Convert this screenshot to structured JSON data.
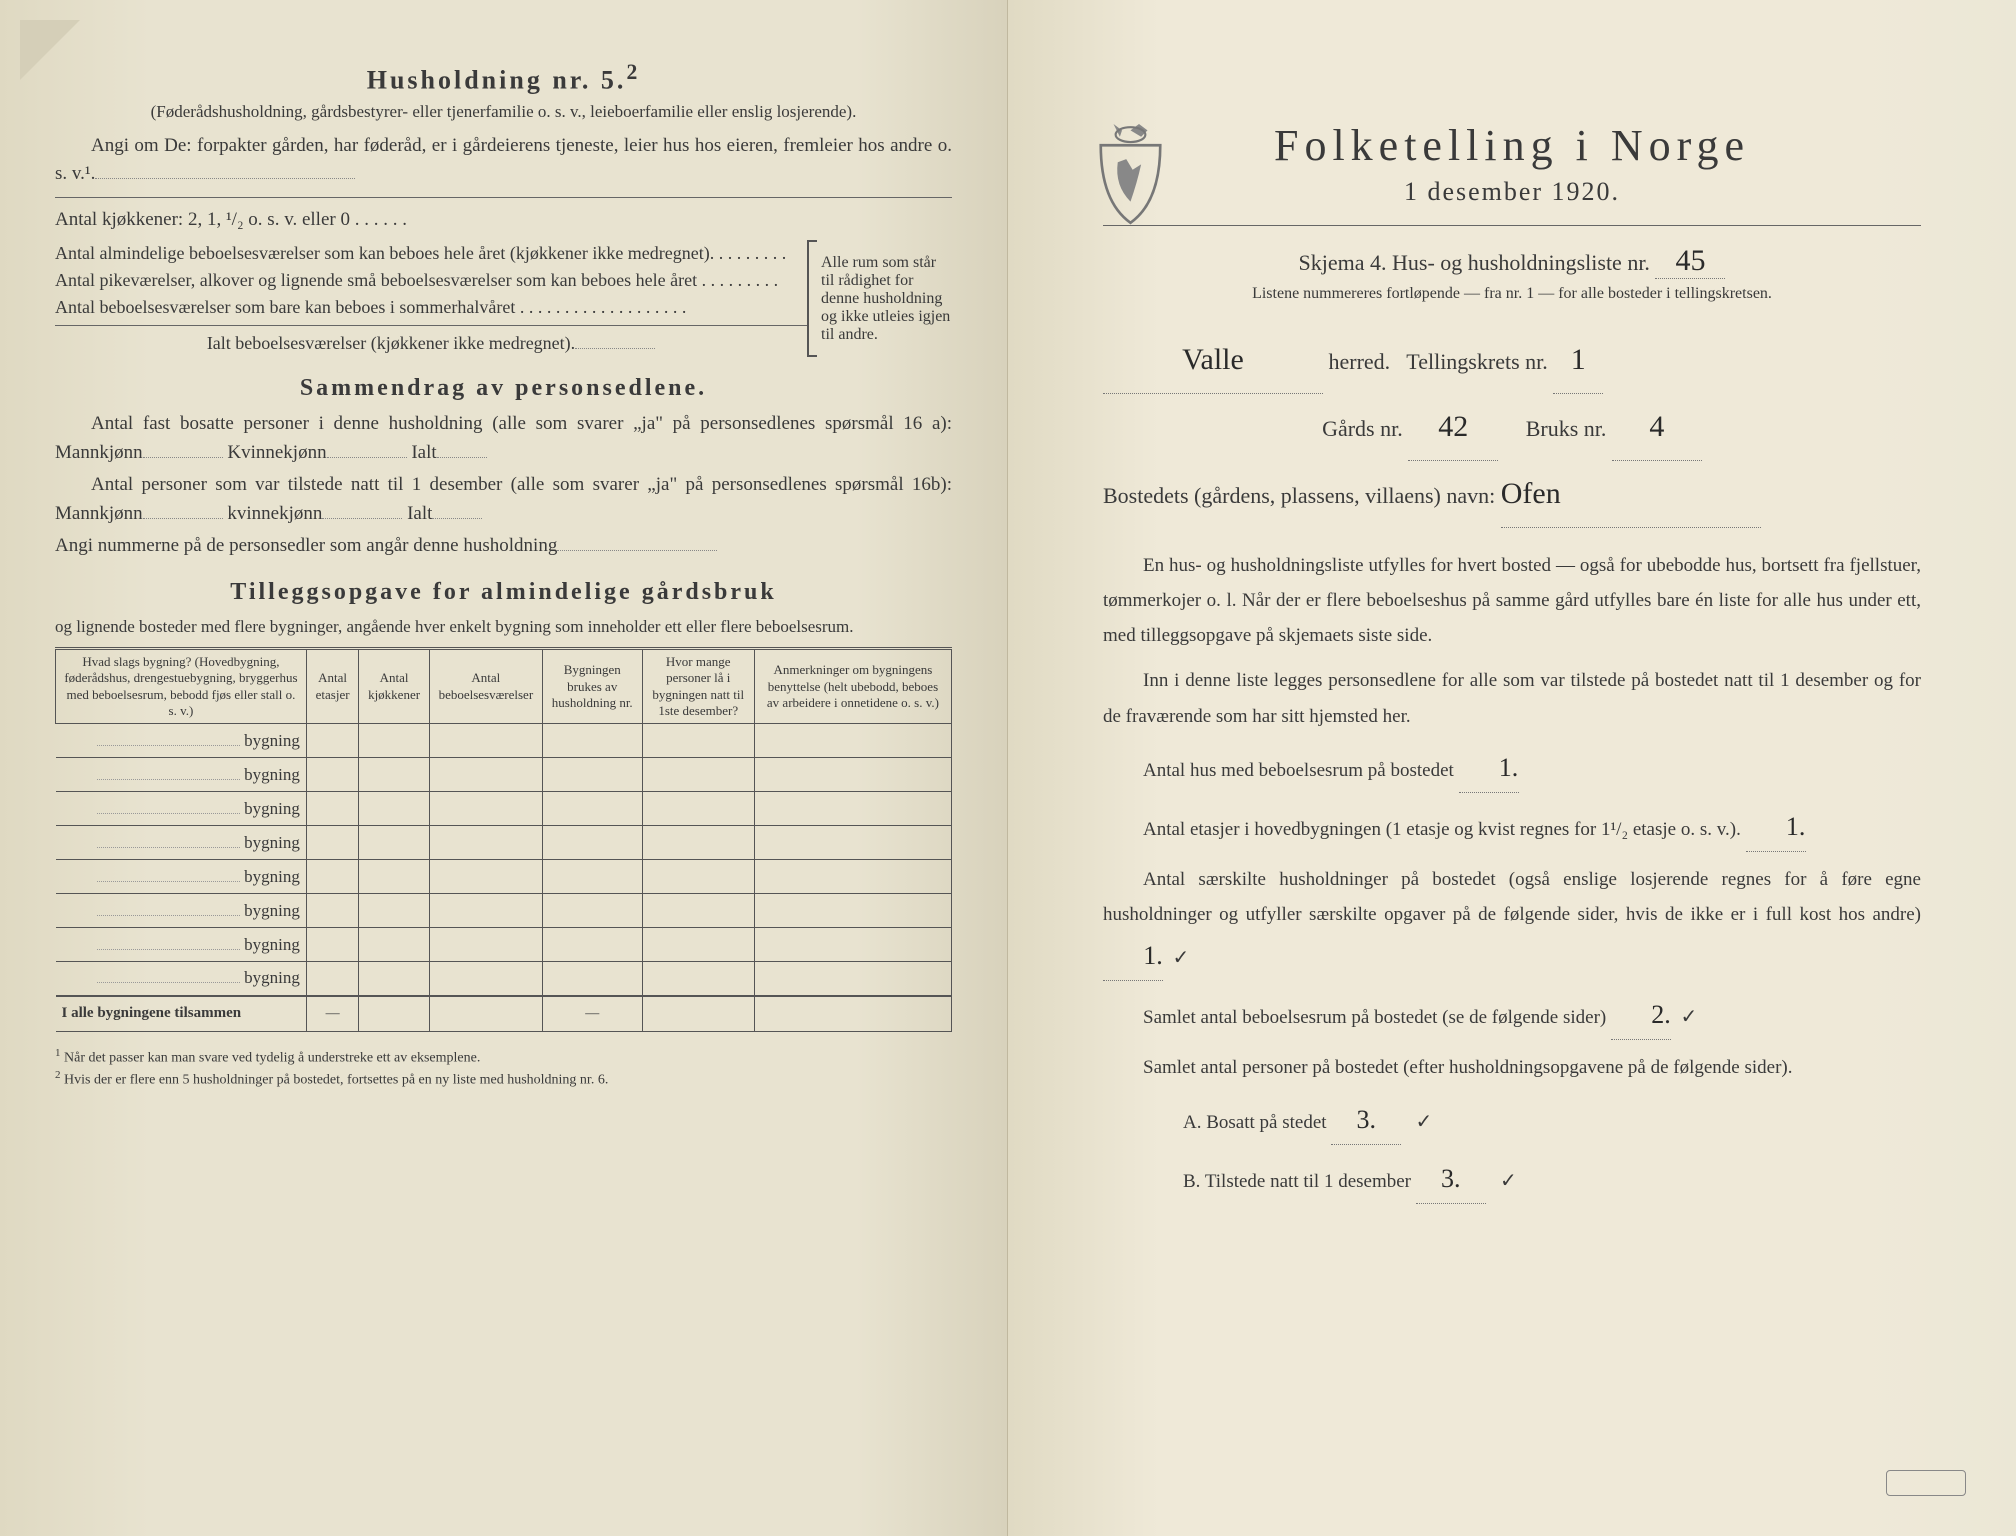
{
  "left": {
    "household_title": "Husholdning nr. 5.",
    "household_sup": "2",
    "household_sub": "(Føderådshusholdning, gårdsbestyrer- eller tjenerfamilie o. s. v., leieboerfamilie eller enslig losjerende).",
    "angi_line": "Angi om De: forpakter gården, har føderåd, er i gårdeierens tjeneste, leier hus hos eieren, fremleier hos andre o. s. v.¹.",
    "kitchens_line": "Antal kjøkkener: 2, 1, ¹/₂ o. s. v. eller 0 . . . . . .",
    "rooms1": "Antal almindelige beboelsesværelser som kan beboes hele året (kjøkkener ikke medregnet). . . . . . . . .",
    "rooms2": "Antal pikeværelser, alkover og lignende små beboelsesværelser som kan beboes hele året . . . . . . . . .",
    "rooms3": "Antal beboelsesværelser som bare kan beboes i sommerhalvåret . . . . . . . . . . . . . . . . . . .",
    "rooms_total": "Ialt beboelsesværelser (kjøkkener ikke medregnet).",
    "bracket_text": "Alle rum som står til rådighet for denne husholdning og ikke utleies igjen til andre.",
    "summary_heading": "Sammendrag av personsedlene.",
    "sum_line1": "Antal fast bosatte personer i denne husholdning (alle som svarer „ja\" på personsedlenes spørsmål 16 a): Mannkjønn",
    "sum_kv": "Kvinnekjønn",
    "sum_ialt": "Ialt",
    "sum_line2": "Antal personer som var tilstede natt til 1 desember (alle som svarer „ja\" på personsedlenes spørsmål 16b): Mannkjønn",
    "sum_kv2": "kvinnekjønn",
    "sum_line3": "Angi nummerne på de personsedler som angår denne husholdning",
    "tillegg_heading": "Tilleggsopgave for almindelige gårdsbruk",
    "tillegg_sub": "og lignende bosteder med flere bygninger, angående hver enkelt bygning som inneholder ett eller flere beboelsesrum.",
    "table": {
      "headers": [
        "Hvad slags bygning?\n(Hovedbygning, føderådshus, drengestuebygning, bryggerhus med beboelsesrum, bebodd fjøs eller stall o. s. v.)",
        "Antal etasjer",
        "Antal kjøkkener",
        "Antal beboelsesværelser",
        "Bygningen brukes av husholdning nr.",
        "Hvor mange personer lå i bygningen natt til 1ste desember?",
        "Anmerkninger om bygningens benyttelse (helt ubebodd, beboes av arbeidere i onnetidene o. s. v.)"
      ],
      "row_label": "bygning",
      "rows": 8,
      "total_row": "I alle bygningene tilsammen"
    },
    "footnote1": "Når det passer kan man svare ved tydelig å understreke ett av eksemplene.",
    "footnote2": "Hvis der er flere enn 5 husholdninger på bostedet, fortsettes på en ny liste med husholdning nr. 6."
  },
  "right": {
    "title": "Folketelling i Norge",
    "date": "1 desember 1920.",
    "schema": "Skjema 4.  Hus- og husholdningsliste nr.",
    "schema_nr": "45",
    "sub_note": "Listene nummereres fortløpende — fra nr. 1 — for alle bosteder i tellingskretsen.",
    "herred_label": "herred.",
    "herred_value": "Valle",
    "krets_label": "Tellingskrets nr.",
    "krets_value": "1",
    "gards_label": "Gårds nr.",
    "gards_value": "42",
    "bruks_label": "Bruks nr.",
    "bruks_value": "4",
    "bosted_label": "Bostedets (gårdens, plassens, villaens) navn:",
    "bosted_value": "Ofen",
    "para1": "En hus- og husholdningsliste utfylles for hvert bosted — også for ubebodde hus, bortsett fra fjellstuer, tømmerkojer o. l. Når der er flere beboelseshus på samme gård utfylles bare én liste for alle hus under ett, med tilleggsopgave på skjemaets siste side.",
    "para2": "Inn i denne liste legges personsedlene for alle som var tilstede på bostedet natt til 1 desember og for de fraværende som har sitt hjemsted her.",
    "q1": "Antal hus med beboelsesrum på bostedet",
    "q1_v": "1.",
    "q2": "Antal etasjer i hovedbygningen (1 etasje og kvist regnes for 1¹/₂ etasje o. s. v.).",
    "q2_v": "1.",
    "q3": "Antal særskilte husholdninger på bostedet (også enslige losjerende regnes for å føre egne husholdninger og utfyller særskilte opgaver på de følgende sider, hvis de ikke er i full kost hos andre)",
    "q3_v": "1.",
    "q4": "Samlet antal beboelsesrum på bostedet (se de følgende sider)",
    "q4_v": "2.",
    "q5": "Samlet antal personer på bostedet (efter husholdningsopgavene på de følgende sider).",
    "qA": "A.  Bosatt på stedet",
    "qA_v": "3.",
    "qB": "B.  Tilstede natt til 1 desember",
    "qB_v": "3.",
    "check": "✓"
  }
}
